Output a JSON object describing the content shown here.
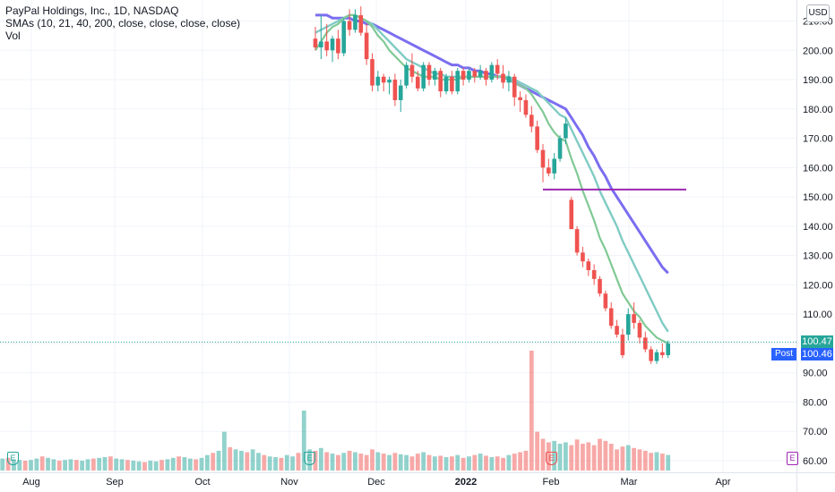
{
  "legend": {
    "title": "PayPal Holdings, Inc., 1D, NASDAQ",
    "indicators": "SMAs (10, 21, 40, 200, close, close, close, close)",
    "volume": "Vol"
  },
  "toolbar": {
    "currency": "USD"
  },
  "price_tags": {
    "last": "100.47",
    "post_label": "Post",
    "post_value": "100.46"
  },
  "colors": {
    "up": "#26a69a",
    "down": "#ef5350",
    "sma10": "#81c995",
    "sma21": "#80cbc4",
    "sma40": "#7b6ef0",
    "level_line": "#9c27b0",
    "last_tag": "#26a69a",
    "post_tag": "#2962ff"
  },
  "events": {
    "earnings_label": "E"
  },
  "chart_data": {
    "type": "candlestick",
    "title": "PayPal Holdings, Inc., 1D, NASDAQ",
    "y_axis": {
      "min": 60,
      "max": 215,
      "ticks": [
        "60.00",
        "70.00",
        "80.00",
        "90.00",
        "100.00",
        "110.00",
        "120.00",
        "130.00",
        "140.00",
        "150.00",
        "160.00",
        "170.00",
        "180.00",
        "190.00",
        "200.00",
        "210.00"
      ]
    },
    "x_axis": {
      "labels": [
        "Aug",
        "Sep",
        "Oct",
        "Nov",
        "Dec",
        "2022",
        "Feb",
        "Mar",
        "Apr"
      ],
      "bold": [
        "2022"
      ]
    },
    "candles_period": "2021-11-04 to 2022-03-16",
    "candles": [
      [
        204,
        208,
        200,
        201
      ],
      [
        201,
        212,
        197,
        203
      ],
      [
        203,
        209,
        198,
        200
      ],
      [
        200,
        205,
        196,
        204
      ],
      [
        204,
        207,
        197,
        199
      ],
      [
        199,
        211,
        198,
        210
      ],
      [
        210,
        214,
        205,
        207
      ],
      [
        207,
        214,
        206,
        212
      ],
      [
        212,
        215,
        205,
        206
      ],
      [
        206,
        209,
        195,
        197
      ],
      [
        197,
        199,
        186,
        188
      ],
      [
        188,
        193,
        186,
        191
      ],
      [
        191,
        192,
        186,
        189
      ],
      [
        189,
        191,
        185,
        190
      ],
      [
        190,
        192,
        181,
        183
      ],
      [
        183,
        190,
        179,
        188
      ],
      [
        188,
        196,
        187,
        195
      ],
      [
        195,
        199,
        189,
        191
      ],
      [
        191,
        193,
        186,
        187
      ],
      [
        187,
        196,
        186,
        195
      ],
      [
        195,
        196,
        188,
        190
      ],
      [
        190,
        194,
        188,
        193
      ],
      [
        193,
        194,
        184,
        186
      ],
      [
        186,
        192,
        185,
        191
      ],
      [
        191,
        193,
        185,
        186
      ],
      [
        186,
        194,
        185,
        193
      ],
      [
        193,
        194,
        188,
        190
      ],
      [
        190,
        194,
        189,
        193
      ],
      [
        193,
        194,
        189,
        191
      ],
      [
        191,
        195,
        190,
        193
      ],
      [
        193,
        194,
        188,
        190
      ],
      [
        190,
        196,
        189,
        195
      ],
      [
        195,
        197,
        190,
        192
      ],
      [
        192,
        195,
        187,
        189
      ],
      [
        189,
        193,
        186,
        191
      ],
      [
        191,
        192,
        181,
        184
      ],
      [
        184,
        186,
        179,
        183
      ],
      [
        183,
        185,
        177,
        178
      ],
      [
        178,
        181,
        172,
        174
      ],
      [
        174,
        176,
        165,
        166
      ],
      [
        166,
        168,
        155,
        160
      ],
      [
        160,
        163,
        157,
        158
      ],
      [
        158,
        165,
        156,
        163
      ],
      [
        163,
        171,
        162,
        170
      ],
      [
        170,
        177,
        168,
        175
      ],
      [
        149,
        150,
        139,
        139
      ],
      [
        139,
        140,
        130,
        131
      ],
      [
        131,
        133,
        126,
        128
      ],
      [
        128,
        129,
        123,
        125
      ],
      [
        125,
        127,
        120,
        122
      ],
      [
        122,
        123,
        116,
        117
      ],
      [
        117,
        118,
        111,
        112
      ],
      [
        112,
        114,
        105,
        106
      ],
      [
        106,
        108,
        102,
        103
      ],
      [
        103,
        105,
        95,
        96
      ],
      [
        103,
        112,
        101,
        110
      ],
      [
        110,
        114,
        105,
        107
      ],
      [
        107,
        108,
        100,
        102
      ],
      [
        102,
        104,
        97,
        98
      ],
      [
        98,
        99,
        93,
        94
      ],
      [
        94,
        98,
        93,
        97
      ],
      [
        97,
        100,
        95,
        96
      ],
      [
        96,
        101,
        95,
        100
      ]
    ],
    "sma10": [
      200,
      203,
      206,
      208,
      209,
      211,
      212,
      212,
      211,
      210,
      208,
      205,
      203,
      200,
      198,
      196,
      194,
      193,
      192,
      191,
      191,
      191,
      190,
      190,
      190,
      190,
      191,
      191,
      191,
      191,
      191,
      191,
      191,
      191,
      190,
      189,
      188,
      187,
      185,
      182,
      179,
      175,
      172,
      170,
      169,
      163,
      158,
      152,
      147,
      142,
      136,
      132,
      127,
      122,
      117,
      114,
      111,
      109,
      106,
      104,
      102,
      101,
      100
    ],
    "sma21": [
      206,
      207,
      208,
      209,
      210,
      211,
      212,
      212,
      211,
      210,
      209,
      207,
      205,
      203,
      201,
      199,
      197,
      196,
      195,
      194,
      193,
      192,
      192,
      191,
      191,
      191,
      191,
      191,
      191,
      191,
      191,
      191,
      191,
      191,
      191,
      190,
      189,
      188,
      187,
      186,
      184,
      182,
      180,
      178,
      177,
      173,
      169,
      165,
      161,
      157,
      152,
      148,
      144,
      140,
      135,
      131,
      127,
      123,
      119,
      115,
      111,
      107,
      104
    ],
    "sma40": [
      212,
      212,
      212,
      211,
      211,
      211,
      211,
      210,
      210,
      209,
      209,
      208,
      207,
      206,
      205,
      204,
      203,
      202,
      201,
      200,
      199,
      198,
      197,
      196,
      195,
      195,
      194,
      194,
      193,
      193,
      192,
      192,
      191,
      191,
      190,
      189,
      188,
      187,
      186,
      185,
      184,
      183,
      182,
      181,
      180,
      177,
      174,
      171,
      167,
      164,
      160,
      157,
      153,
      150,
      147,
      144,
      141,
      138,
      135,
      132,
      129,
      126,
      124
    ],
    "level_line": {
      "value": 152.5
    },
    "volume_unit": "relative",
    "volume": [
      22,
      20,
      19,
      18,
      18,
      17,
      18,
      16,
      17,
      16,
      15,
      17,
      16,
      15,
      18,
      17,
      16,
      15,
      16,
      14,
      15,
      16,
      15,
      17,
      16,
      14,
      15,
      16,
      15,
      17,
      16,
      15,
      14,
      16,
      15,
      17,
      18,
      16,
      15,
      14,
      15,
      17,
      20,
      18,
      16,
      14,
      15,
      16,
      15,
      14,
      16,
      17,
      18,
      19,
      20,
      17,
      16,
      15,
      14,
      13,
      12,
      14,
      13,
      15,
      16,
      18,
      20,
      19,
      17,
      16,
      18,
      22,
      25,
      28,
      55,
      33,
      30,
      28,
      26,
      30,
      25,
      22,
      20,
      19,
      18,
      22,
      20,
      25,
      85,
      30,
      28,
      32,
      26,
      24,
      22,
      25,
      28,
      26,
      24,
      22,
      30,
      26,
      24,
      22,
      25,
      23,
      22,
      20,
      24,
      26,
      22,
      20,
      21,
      19,
      20,
      22,
      18,
      20,
      22,
      24,
      21,
      19,
      20,
      18,
      22,
      24,
      26,
      28,
      170,
      55,
      45,
      40,
      42,
      38,
      40,
      36,
      44,
      38,
      40,
      36,
      45,
      42,
      38,
      30,
      34,
      36,
      32,
      30,
      28,
      25,
      26,
      24,
      22
    ]
  }
}
